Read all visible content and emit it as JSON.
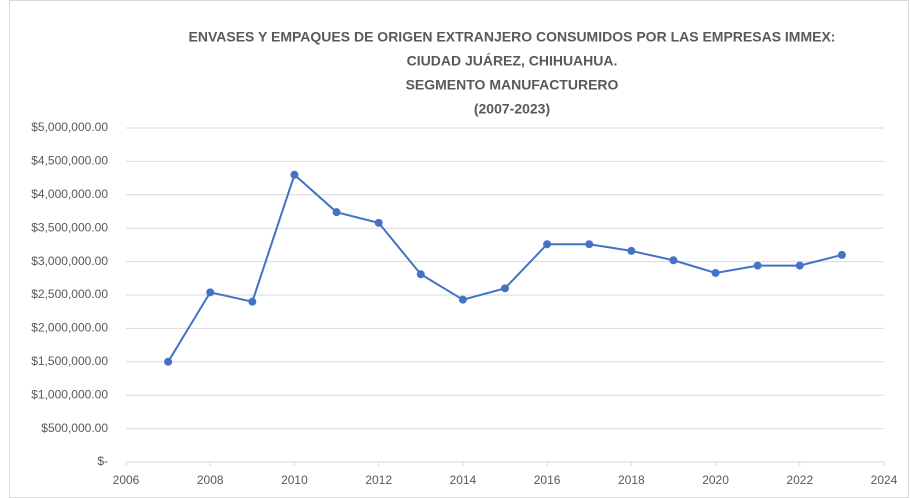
{
  "chart_data": {
    "type": "line",
    "title": [
      "ENVASES Y EMPAQUES DE ORIGEN EXTRANJERO CONSUMIDOS POR LAS EMPRESAS IMMEX:",
      "CIUDAD JUÁREZ, CHIHUAHUA.",
      "SEGMENTO MANUFACTURERO",
      "(2007-2023)"
    ],
    "x": [
      2007,
      2008,
      2009,
      2010,
      2011,
      2012,
      2013,
      2014,
      2015,
      2016,
      2017,
      2018,
      2019,
      2020,
      2021,
      2022,
      2023
    ],
    "series": [
      {
        "color": "#4472c4",
        "values": [
          1500000,
          2540000,
          2400000,
          4300000,
          3740000,
          3580000,
          2810000,
          2430000,
          2600000,
          3260000,
          3260000,
          3160000,
          3020000,
          2830000,
          2940000,
          2940000,
          3100000
        ]
      }
    ],
    "xlim": [
      2006,
      2024
    ],
    "xticks": [
      2006,
      2008,
      2010,
      2012,
      2014,
      2016,
      2018,
      2020,
      2022,
      2024
    ],
    "ylim": [
      0,
      5000000
    ],
    "yticks": [
      {
        "value": 0,
        "label": "$-"
      },
      {
        "value": 500000,
        "label": "$500,000.00"
      },
      {
        "value": 1000000,
        "label": "$1,000,000.00"
      },
      {
        "value": 1500000,
        "label": "$1,500,000.00"
      },
      {
        "value": 2000000,
        "label": "$2,000,000.00"
      },
      {
        "value": 2500000,
        "label": "$2,500,000.00"
      },
      {
        "value": 3000000,
        "label": "$3,000,000.00"
      },
      {
        "value": 3500000,
        "label": "$3,500,000.00"
      },
      {
        "value": 4000000,
        "label": "$4,000,000.00"
      },
      {
        "value": 4500000,
        "label": "$4,500,000.00"
      },
      {
        "value": 5000000,
        "label": "$5,000,000.00"
      }
    ],
    "grid": true
  }
}
